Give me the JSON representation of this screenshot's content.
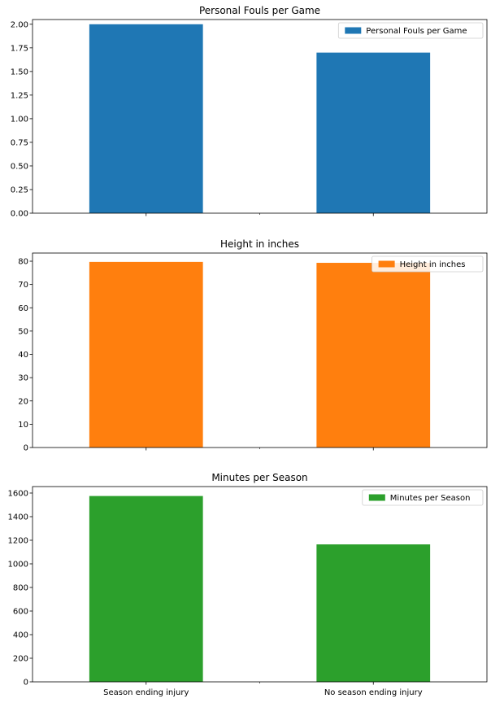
{
  "chart_data": [
    {
      "type": "bar",
      "title": "Personal Fouls per Game",
      "categories": [
        "Season ending injury",
        "No season ending injury"
      ],
      "series": [
        {
          "name": "Personal Fouls per Game",
          "values": [
            2.0,
            1.7
          ]
        }
      ],
      "ylim": [
        0,
        2.05
      ],
      "yticks": [
        "0.00",
        "0.25",
        "0.50",
        "0.75",
        "1.00",
        "1.25",
        "1.50",
        "1.75",
        "2.00"
      ],
      "show_xticklabels": false,
      "legend": "top-right",
      "grid": false,
      "color": "#1f77b4"
    },
    {
      "type": "bar",
      "title": "Height in inches",
      "categories": [
        "Season ending injury",
        "No season ending injury"
      ],
      "series": [
        {
          "name": "Height in inches",
          "values": [
            79.7,
            79.3
          ]
        }
      ],
      "ylim": [
        0,
        83.5
      ],
      "yticks": [
        "0",
        "10",
        "20",
        "30",
        "40",
        "50",
        "60",
        "70",
        "80"
      ],
      "show_xticklabels": false,
      "legend": "top-right",
      "grid": false,
      "color": "#ff7f0e"
    },
    {
      "type": "bar",
      "title": "Minutes per Season",
      "categories": [
        "Season ending injury",
        "No season ending injury"
      ],
      "series": [
        {
          "name": "Minutes per Season",
          "values": [
            1575,
            1165
          ]
        }
      ],
      "ylim": [
        0,
        1655
      ],
      "yticks": [
        "0",
        "200",
        "400",
        "600",
        "800",
        "1000",
        "1200",
        "1400",
        "1600"
      ],
      "show_xticklabels": true,
      "legend": "top-right",
      "grid": false,
      "color": "#2ca02c"
    }
  ]
}
